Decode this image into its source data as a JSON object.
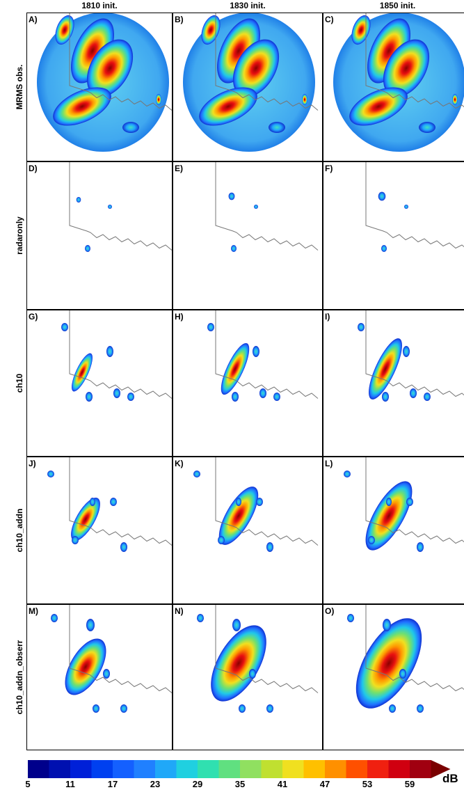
{
  "columns": [
    "1810 init.",
    "1830 init.",
    "1850 init."
  ],
  "rows": [
    "MRMS obs.",
    "radaronly",
    "ch10",
    "ch10_addn",
    "ch10_addn_obserr"
  ],
  "panels": [
    "A)",
    "B)",
    "C)",
    "D)",
    "E)",
    "F)",
    "G)",
    "H)",
    "I)",
    "J)",
    "K)",
    "L)",
    "M)",
    "N)",
    "O)"
  ],
  "colorbar": {
    "ticks": [
      5,
      11,
      17,
      23,
      29,
      35,
      41,
      47,
      53,
      59
    ],
    "unit": "dB"
  }
}
